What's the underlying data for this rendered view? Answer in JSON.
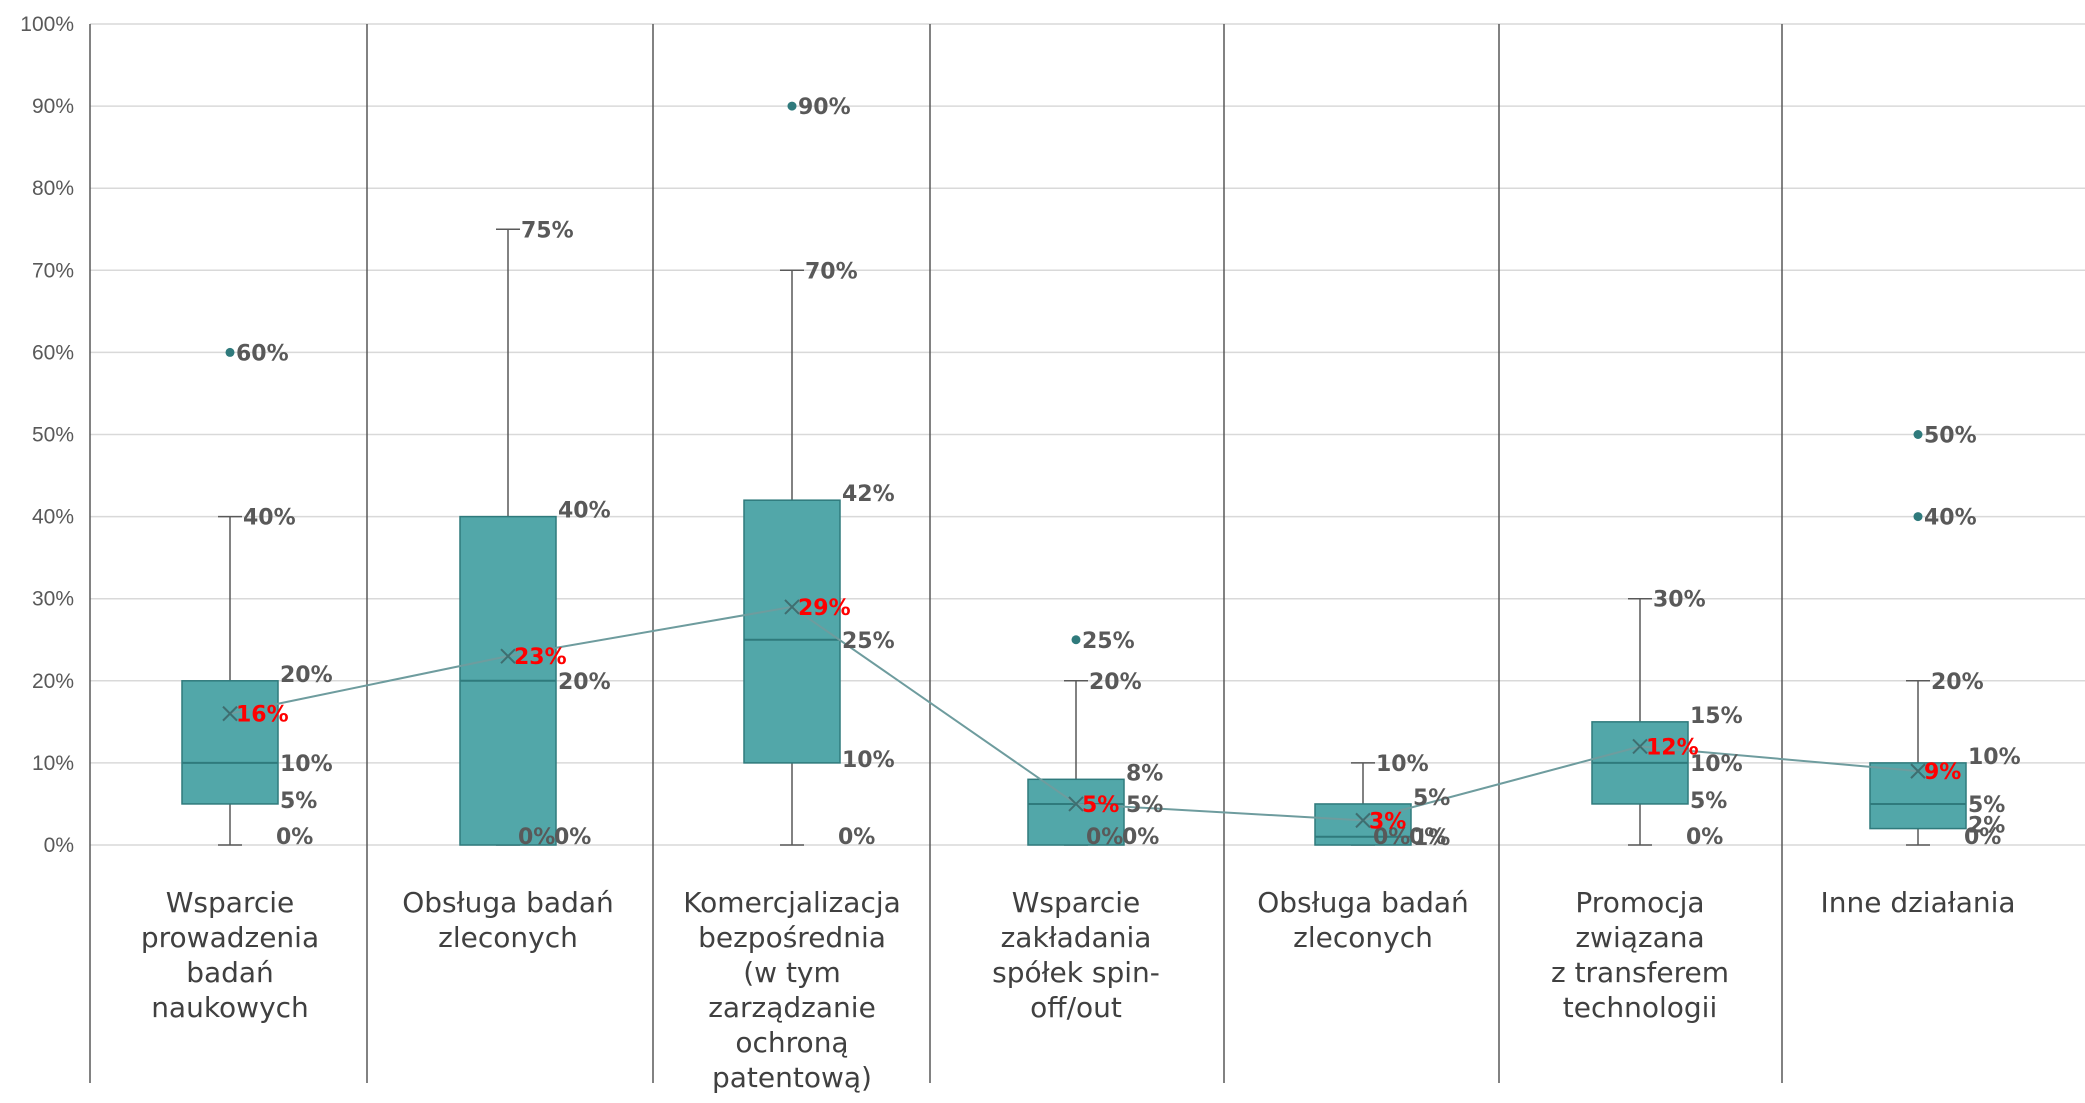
{
  "chart_data": {
    "type": "boxplot",
    "title": "",
    "xlabel": "",
    "ylabel": "",
    "ylim": [
      0,
      100
    ],
    "yunit": "%",
    "yticks": [
      "0%",
      "10%",
      "20%",
      "30%",
      "40%",
      "50%",
      "60%",
      "70%",
      "80%",
      "90%",
      "100%"
    ],
    "grid": true,
    "legend": "none",
    "colors": {
      "box": "#52a7a9",
      "box_border": "#2f7a7c",
      "whisker": "#595959",
      "mean_line": "#6e9c9e",
      "mean_label": "#ff0000",
      "value_label": "#595959",
      "grid": "#d9d9d9",
      "divider": "#595959"
    },
    "categories": [
      {
        "label_lines": [
          "Wsparcie",
          "prowadzenia",
          "badań",
          "naukowych"
        ],
        "min": 0,
        "q1": 5,
        "median": 10,
        "q3": 20,
        "max": 40,
        "mean": 16,
        "outliers": [
          60
        ],
        "labels": {
          "max": "40%",
          "q3": "20%",
          "median": "10%",
          "q1": "5%",
          "min": "0%",
          "mean": "16%",
          "outliers": [
            "60%"
          ]
        }
      },
      {
        "label_lines": [
          "Obsługa badań",
          "zleconych"
        ],
        "min": 0,
        "q1": 0,
        "median": 20,
        "q3": 40,
        "max": 75,
        "mean": 23,
        "outliers": [],
        "labels": {
          "max": "75%",
          "q3": "40%",
          "median": "20%",
          "q1": "0%",
          "min": "0%",
          "mean": "23%",
          "outliers": []
        }
      },
      {
        "label_lines": [
          "Komercjalizacja",
          "bezpośrednia",
          "(w tym",
          "zarządzanie",
          "ochroną",
          "patentową)"
        ],
        "min": 0,
        "q1": 10,
        "median": 25,
        "q3": 42,
        "max": 70,
        "mean": 29,
        "outliers": [
          90
        ],
        "labels": {
          "max": "70%",
          "q3": "42%",
          "median": "25%",
          "q1": "10%",
          "min": "0%",
          "mean": "29%",
          "outliers": [
            "90%"
          ]
        }
      },
      {
        "label_lines": [
          "Wsparcie",
          "zakładania",
          "spółek spin-",
          "off/out"
        ],
        "min": 0,
        "q1": 0,
        "median": 5,
        "q3": 8,
        "max": 20,
        "mean": 5,
        "outliers": [
          25
        ],
        "labels": {
          "max": "20%",
          "q3": "8%",
          "median": "5%",
          "q1": "0%",
          "min": "0%",
          "mean": "5%",
          "outliers": [
            "25%"
          ]
        }
      },
      {
        "label_lines": [
          "Obsługa badań",
          "zleconych"
        ],
        "min": 0,
        "q1": 0,
        "median": 1,
        "q3": 5,
        "max": 10,
        "mean": 3,
        "outliers": [],
        "labels": {
          "max": "10%",
          "q3": "5%",
          "median": "1%",
          "q1": "0%",
          "min": "0%",
          "mean": "3%",
          "outliers": []
        }
      },
      {
        "label_lines": [
          "Promocja",
          "związana",
          "z transferem",
          "technologii"
        ],
        "min": 0,
        "q1": 5,
        "median": 10,
        "q3": 15,
        "max": 30,
        "mean": 12,
        "outliers": [],
        "labels": {
          "max": "30%",
          "q3": "15%",
          "median": "10%",
          "q1": "5%",
          "min": "0%",
          "mean": "12%",
          "outliers": []
        }
      },
      {
        "label_lines": [
          "Inne działania"
        ],
        "min": 0,
        "q1": 2,
        "median": 5,
        "q3": 10,
        "max": 20,
        "mean": 9,
        "outliers": [
          40,
          50
        ],
        "labels": {
          "max": "20%",
          "q3": "10%",
          "median": "5%",
          "q1": "2%",
          "min": "0%",
          "mean": "9%",
          "outliers": [
            "40%",
            "50%"
          ]
        }
      }
    ]
  }
}
